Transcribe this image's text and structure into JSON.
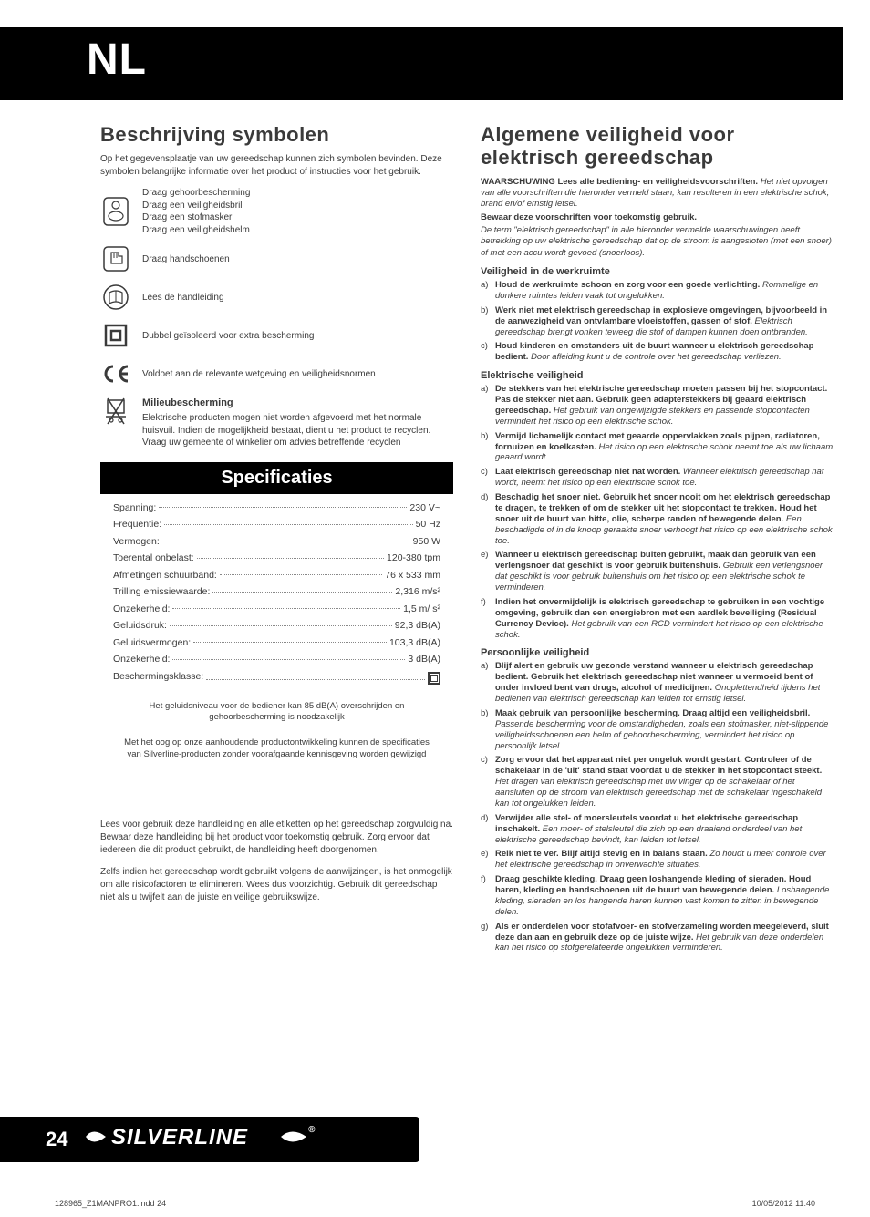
{
  "lang_code": "NL",
  "page_number": "24",
  "brand": "SILVERLINE",
  "print_file": "128965_Z1MANPRO1.indd   24",
  "print_date": "10/05/2012   11:40",
  "left": {
    "symbols_title": "Beschrijving symbolen",
    "symbols_intro": "Op het gegevensplaatje van uw gereedschap kunnen zich symbolen bevinden. Deze symbolen belangrijke informatie over het product of instructies voor het gebruik.",
    "symbols": [
      {
        "name": "ppe-icon",
        "lines": [
          "Draag gehoorbescherming",
          "Draag een veiligheidsbril",
          "Draag een stofmasker",
          "Draag een veiligheidshelm"
        ]
      },
      {
        "name": "gloves-icon",
        "lines": [
          "Draag handschoenen"
        ]
      },
      {
        "name": "manual-icon",
        "lines": [
          "Lees de handleiding"
        ]
      },
      {
        "name": "double-insulated-icon",
        "lines": [
          "Dubbel geïsoleerd voor extra bescherming"
        ]
      },
      {
        "name": "ce-icon",
        "lines": [
          "Voldoet aan de relevante wetgeving en veiligheidsnormen"
        ]
      }
    ],
    "env_title": "Milieubescherming",
    "env_text": "Elektrische producten mogen niet worden afgevoerd met het normale huisvuil. Indien de mogelijkheid bestaat, dient u het product te recyclen. Vraag uw gemeente of winkelier om advies betreffende recyclen",
    "spec_title": "Specificaties",
    "specs": [
      {
        "label": "Spanning:",
        "value": "230 V~"
      },
      {
        "label": "Frequentie:",
        "value": "50 Hz"
      },
      {
        "label": "Vermogen:",
        "value": "950 W"
      },
      {
        "label": "Toerental onbelast:",
        "value": "120-380 tpm"
      },
      {
        "label": "Afmetingen schuurband:",
        "value": "76 x 533 mm"
      },
      {
        "label": "Trilling emissiewaarde:",
        "value": "2,316 m/s²"
      },
      {
        "label": "Onzekerheid:",
        "value": "1,5 m/ s²"
      },
      {
        "label": "Geluidsdruk:",
        "value": "92,3 dB(A)"
      },
      {
        "label": "Geluidsvermogen:",
        "value": "103,3 dB(A)"
      },
      {
        "label": "Onzekerheid:",
        "value": "3 dB(A)"
      },
      {
        "label": "Beschermingsklasse:",
        "value": "",
        "di": true
      }
    ],
    "spec_note1": "Het geluidsniveau voor de bediener kan 85 dB(A) overschrijden en gehoorbescherming is noodzakelijk",
    "spec_note2": "Met het oog op onze aanhoudende productontwikkeling kunnen de specificaties van Silverline-producten zonder voorafgaande kennisgeving worden gewijzigd",
    "usage1": "Lees voor gebruik deze handleiding en alle etiketten op het gereedschap zorgvuldig na. Bewaar deze handleiding bij het product voor toekomstig gebruik. Zorg ervoor dat iedereen die dit product gebruikt, de handleiding heeft doorgenomen.",
    "usage2": "Zelfs indien het gereedschap wordt gebruikt volgens de aanwijzingen, is het onmogelijk om alle risicofactoren te elimineren. Wees dus voorzichtig. Gebruik dit gereedschap niet als u twijfelt aan de juiste en veilige gebruikswijze."
  },
  "right": {
    "title": "Algemene veiligheid voor elektrisch gereedschap",
    "warn_lead": "WAARSCHUWING Lees alle bediening- en veiligheidsvoorschriften.",
    "warn_ital": "Het niet opvolgen van alle voorschriften die hieronder vermeld staan, kan resulteren in een elektrische schok, brand en/of ernstig letsel.",
    "warn_keep": "Bewaar deze voorschriften voor toekomstig gebruik.",
    "warn_def": "De term \"elektrisch gereedschap\" in alle hieronder vermelde waarschuwingen heeft betrekking op uw elektrische gereedschap dat op de stroom is aangesloten (met een snoer) of met een accu wordt gevoed (snoerloos).",
    "sections": [
      {
        "title": "Veiligheid in de werkruimte",
        "items": [
          {
            "l": "a)",
            "b": "Houd de werkruimte schoon en zorg voor een goede verlichting.",
            "i": "Rommelige en donkere ruimtes leiden vaak tot ongelukken."
          },
          {
            "l": "b)",
            "b": "Werk niet met elektrisch gereedschap in explosieve omgevingen, bijvoorbeeld in de aanwezigheid van ontvlambare vloeistoffen, gassen of stof.",
            "i": "Elektrisch gereedschap brengt vonken teweeg die stof of dampen kunnen doen ontbranden."
          },
          {
            "l": "c)",
            "b": "Houd kinderen en omstanders uit de buurt wanneer u elektrisch gereedschap bedient.",
            "i": "Door afleiding kunt u de controle over het gereedschap verliezen."
          }
        ]
      },
      {
        "title": "Elektrische veiligheid",
        "items": [
          {
            "l": "a)",
            "b": "De stekkers van het elektrische gereedschap moeten passen bij het stopcontact. Pas de stekker niet aan. Gebruik geen adapterstekkers bij geaard elektrisch gereedschap.",
            "i": "Het gebruik van ongewijzigde stekkers en passende stopcontacten vermindert het risico op een elektrische schok."
          },
          {
            "l": "b)",
            "b": "Vermijd lichamelijk contact met geaarde oppervlakken zoals pijpen, radiatoren, fornuizen en koelkasten.",
            "i": "Het risico op een elektrische schok neemt toe als uw lichaam geaard wordt."
          },
          {
            "l": "c)",
            "b": "Laat elektrisch gereedschap niet nat worden.",
            "i": "Wanneer elektrisch gereedschap nat wordt, neemt het risico op een elektrische schok toe."
          },
          {
            "l": "d)",
            "b": "Beschadig het snoer niet. Gebruik het snoer nooit om het elektrisch gereedschap te dragen, te trekken of om de stekker uit het stopcontact te trekken. Houd het snoer uit de buurt van hitte, olie, scherpe randen of bewegende delen.",
            "i": "Een beschadigde of in de knoop geraakte snoer verhoogt het risico op een elektrische schok toe."
          },
          {
            "l": "e)",
            "b": "Wanneer u elektrisch gereedschap buiten gebruikt, maak dan gebruik van een verlengsnoer dat geschikt is voor gebruik buitenshuis.",
            "i": "Gebruik een verlengsnoer dat geschikt is voor gebruik buitenshuis om het risico op een elektrische schok te verminderen."
          },
          {
            "l": "f)",
            "b": "Indien het onvermijdelijk is elektrisch gereedschap te gebruiken in een vochtige omgeving, gebruik dan een energiebron met een aardlek beveiliging (Residual Currency Device).",
            "i": "Het gebruik van een RCD vermindert het risico op een elektrische schok."
          }
        ]
      },
      {
        "title": "Persoonlijke veiligheid",
        "items": [
          {
            "l": "a)",
            "b": "Blijf alert en gebruik uw gezonde verstand wanneer u elektrisch gereedschap bedient. Gebruik het elektrisch gereedschap niet wanneer u vermoeid bent of onder invloed bent van drugs, alcohol of medicijnen.",
            "i": "Onoplettendheid tijdens het bedienen van elektrisch gereedschap kan leiden tot ernstig letsel."
          },
          {
            "l": "b)",
            "b": "Maak gebruik van persoonlijke bescherming. Draag altijd een veiligheidsbril.",
            "i": "Passende bescherming voor de omstandigheden, zoals een stofmasker, niet-slippende veiligheidsschoenen een helm of gehoorbescherming, vermindert het risico op persoonlijk letsel."
          },
          {
            "l": "c)",
            "b": "Zorg ervoor dat het apparaat niet per ongeluk wordt gestart. Controleer of de schakelaar in de 'uit' stand staat voordat u de stekker in het stopcontact steekt.",
            "i": "Het dragen van elektrisch gereedschap met uw vinger op de schakelaar of het aansluiten op de stroom van elektrisch gereedschap met de schakelaar ingeschakeld kan tot ongelukken leiden."
          },
          {
            "l": "d)",
            "b": "Verwijder alle stel- of moersleutels voordat u het elektrische gereedschap inschakelt.",
            "i": "Een moer- of stelsleutel die zich op een draaiend onderdeel van het elektrische gereedschap bevindt, kan leiden tot letsel."
          },
          {
            "l": "e)",
            "b": "Reik niet te ver. Blijf altijd stevig en in balans staan.",
            "i": "Zo houdt u meer controle over het elektrische gereedschap in onverwachte situaties."
          },
          {
            "l": "f)",
            "b": "Draag geschikte kleding. Draag geen loshangende kleding of sieraden. Houd haren, kleding en handschoenen uit de buurt van bewegende delen.",
            "i": "Loshangende kleding, sieraden en los hangende haren kunnen vast komen te zitten in bewegende delen."
          },
          {
            "l": "g)",
            "b": "Als er onderdelen voor stofafvoer- en stofverzameling worden meegeleverd, sluit deze dan aan en gebruik deze op de juiste wijze.",
            "i": "Het gebruik van deze onderdelen kan het risico op stofgerelateerde ongelukken verminderen."
          }
        ]
      }
    ]
  }
}
